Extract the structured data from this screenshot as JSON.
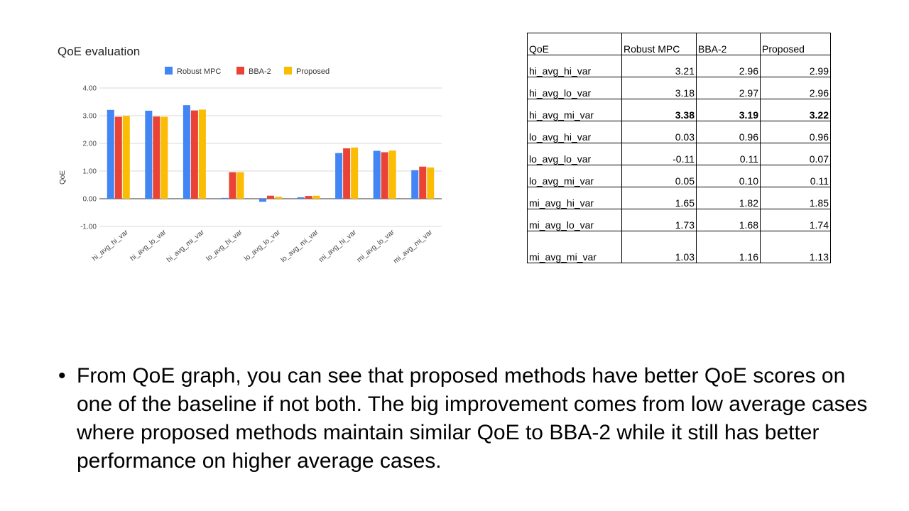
{
  "chart_data": {
    "type": "bar",
    "title": "QoE evaluation",
    "ylabel": "QoE",
    "xlabel": "",
    "ylim": [
      -1,
      4
    ],
    "yticks": [
      "4.00",
      "3.00",
      "2.00",
      "1.00",
      "0.00",
      "-1.00"
    ],
    "yticks_values": [
      4,
      3,
      2,
      1,
      0,
      -1
    ],
    "legend_position": "top-center",
    "categories": [
      "hi_avg_hi_var",
      "hi_avg_lo_var",
      "hi_avg_mi_var",
      "lo_avg_hi_var",
      "lo_avg_lo_var",
      "lo_avg_mi_var",
      "mi_avg_hi_var",
      "mi_avg_lo_var",
      "mi_avg_mi_var"
    ],
    "series": [
      {
        "name": "Robust MPC",
        "color": "#4285f4",
        "values": [
          3.21,
          3.18,
          3.38,
          0.03,
          -0.11,
          0.05,
          1.65,
          1.73,
          1.03
        ]
      },
      {
        "name": "BBA-2",
        "color": "#ea4335",
        "values": [
          2.96,
          2.97,
          3.19,
          0.96,
          0.11,
          0.1,
          1.82,
          1.68,
          1.16
        ]
      },
      {
        "name": "Proposed",
        "color": "#fbbc04",
        "values": [
          2.99,
          2.96,
          3.22,
          0.96,
          0.07,
          0.11,
          1.85,
          1.74,
          1.13
        ]
      }
    ],
    "grid": true
  },
  "table": {
    "headers": [
      "QoE",
      "Robust MPC",
      "BBA-2",
      "Proposed"
    ],
    "rows": [
      {
        "label": "hi_avg_hi_var",
        "values": [
          "3.21",
          "2.96",
          "2.99"
        ]
      },
      {
        "label": "hi_avg_lo_var",
        "values": [
          "3.18",
          "2.97",
          "2.96"
        ]
      },
      {
        "label": "hi_avg_mi_var",
        "values": [
          "3.38",
          "3.19",
          "3.22"
        ]
      },
      {
        "label": "lo_avg_hi_var",
        "values": [
          "0.03",
          "0.96",
          "0.96"
        ]
      },
      {
        "label": "lo_avg_lo_var",
        "values": [
          "-0.11",
          "0.11",
          "0.07"
        ]
      },
      {
        "label": "lo_avg_mi_var",
        "values": [
          "0.05",
          "0.10",
          "0.11"
        ]
      },
      {
        "label": "mi_avg_hi_var",
        "values": [
          "1.65",
          "1.82",
          "1.85"
        ]
      },
      {
        "label": "mi_avg_lo_var",
        "values": [
          "1.73",
          "1.68",
          "1.74"
        ]
      },
      {
        "label": "mi_avg_mi_var",
        "values": [
          "1.03",
          "1.16",
          "1.13"
        ]
      }
    ]
  },
  "bullet": {
    "symbol": "•",
    "text": "From QoE graph, you can see that proposed methods have better QoE scores on one of the baseline if not both. The big improvement comes from low average cases where proposed methods maintain similar QoE to BBA-2 while it still has better performance on higher average cases."
  }
}
